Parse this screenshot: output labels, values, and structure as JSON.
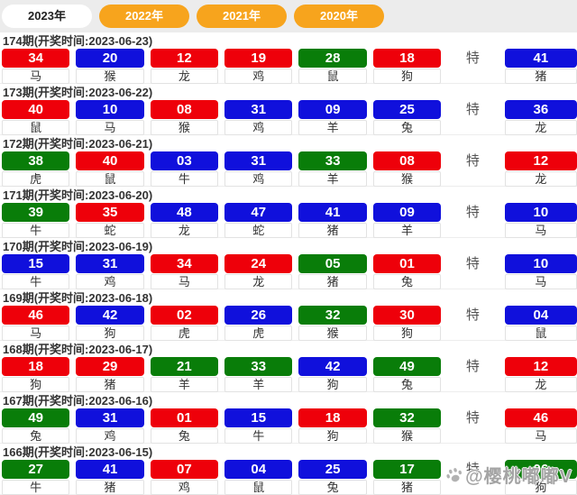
{
  "tabs": [
    {
      "label": "2023年",
      "active": true
    },
    {
      "label": "2022年",
      "active": false
    },
    {
      "label": "2021年",
      "active": false
    },
    {
      "label": "2020年",
      "active": false
    }
  ],
  "special_label": "特",
  "colors": {
    "red": "#ee000a",
    "blue": "#1010dc",
    "green": "#097d09",
    "tab_orange": "#f7a41d",
    "tab_active_bg": "#ffffff"
  },
  "watermark": {
    "icon": "paw-icon",
    "text": "@樱桃嘟嘟V"
  },
  "rows": [
    {
      "period": "174期(开奖时间:2023-06-23)",
      "balls": [
        {
          "num": "34",
          "zodiac": "马",
          "color": "red"
        },
        {
          "num": "20",
          "zodiac": "猴",
          "color": "blue"
        },
        {
          "num": "12",
          "zodiac": "龙",
          "color": "red"
        },
        {
          "num": "19",
          "zodiac": "鸡",
          "color": "red"
        },
        {
          "num": "28",
          "zodiac": "鼠",
          "color": "green"
        },
        {
          "num": "18",
          "zodiac": "狗",
          "color": "red"
        }
      ],
      "special": {
        "num": "41",
        "zodiac": "猪",
        "color": "blue"
      }
    },
    {
      "period": "173期(开奖时间:2023-06-22)",
      "balls": [
        {
          "num": "40",
          "zodiac": "鼠",
          "color": "red"
        },
        {
          "num": "10",
          "zodiac": "马",
          "color": "blue"
        },
        {
          "num": "08",
          "zodiac": "猴",
          "color": "red"
        },
        {
          "num": "31",
          "zodiac": "鸡",
          "color": "blue"
        },
        {
          "num": "09",
          "zodiac": "羊",
          "color": "blue"
        },
        {
          "num": "25",
          "zodiac": "兔",
          "color": "blue"
        }
      ],
      "special": {
        "num": "36",
        "zodiac": "龙",
        "color": "blue"
      }
    },
    {
      "period": "172期(开奖时间:2023-06-21)",
      "balls": [
        {
          "num": "38",
          "zodiac": "虎",
          "color": "green"
        },
        {
          "num": "40",
          "zodiac": "鼠",
          "color": "red"
        },
        {
          "num": "03",
          "zodiac": "牛",
          "color": "blue"
        },
        {
          "num": "31",
          "zodiac": "鸡",
          "color": "blue"
        },
        {
          "num": "33",
          "zodiac": "羊",
          "color": "green"
        },
        {
          "num": "08",
          "zodiac": "猴",
          "color": "red"
        }
      ],
      "special": {
        "num": "12",
        "zodiac": "龙",
        "color": "red"
      }
    },
    {
      "period": "171期(开奖时间:2023-06-20)",
      "balls": [
        {
          "num": "39",
          "zodiac": "牛",
          "color": "green"
        },
        {
          "num": "35",
          "zodiac": "蛇",
          "color": "red"
        },
        {
          "num": "48",
          "zodiac": "龙",
          "color": "blue"
        },
        {
          "num": "47",
          "zodiac": "蛇",
          "color": "blue"
        },
        {
          "num": "41",
          "zodiac": "猪",
          "color": "blue"
        },
        {
          "num": "09",
          "zodiac": "羊",
          "color": "blue"
        }
      ],
      "special": {
        "num": "10",
        "zodiac": "马",
        "color": "blue"
      }
    },
    {
      "period": "170期(开奖时间:2023-06-19)",
      "balls": [
        {
          "num": "15",
          "zodiac": "牛",
          "color": "blue"
        },
        {
          "num": "31",
          "zodiac": "鸡",
          "color": "blue"
        },
        {
          "num": "34",
          "zodiac": "马",
          "color": "red"
        },
        {
          "num": "24",
          "zodiac": "龙",
          "color": "red"
        },
        {
          "num": "05",
          "zodiac": "猪",
          "color": "green"
        },
        {
          "num": "01",
          "zodiac": "兔",
          "color": "red"
        }
      ],
      "special": {
        "num": "10",
        "zodiac": "马",
        "color": "blue"
      }
    },
    {
      "period": "169期(开奖时间:2023-06-18)",
      "balls": [
        {
          "num": "46",
          "zodiac": "马",
          "color": "red"
        },
        {
          "num": "42",
          "zodiac": "狗",
          "color": "blue"
        },
        {
          "num": "02",
          "zodiac": "虎",
          "color": "red"
        },
        {
          "num": "26",
          "zodiac": "虎",
          "color": "blue"
        },
        {
          "num": "32",
          "zodiac": "猴",
          "color": "green"
        },
        {
          "num": "30",
          "zodiac": "狗",
          "color": "red"
        }
      ],
      "special": {
        "num": "04",
        "zodiac": "鼠",
        "color": "blue"
      }
    },
    {
      "period": "168期(开奖时间:2023-06-17)",
      "balls": [
        {
          "num": "18",
          "zodiac": "狗",
          "color": "red"
        },
        {
          "num": "29",
          "zodiac": "猪",
          "color": "red"
        },
        {
          "num": "21",
          "zodiac": "羊",
          "color": "green"
        },
        {
          "num": "33",
          "zodiac": "羊",
          "color": "green"
        },
        {
          "num": "42",
          "zodiac": "狗",
          "color": "blue"
        },
        {
          "num": "49",
          "zodiac": "兔",
          "color": "green"
        }
      ],
      "special": {
        "num": "12",
        "zodiac": "龙",
        "color": "red"
      }
    },
    {
      "period": "167期(开奖时间:2023-06-16)",
      "balls": [
        {
          "num": "49",
          "zodiac": "兔",
          "color": "green"
        },
        {
          "num": "31",
          "zodiac": "鸡",
          "color": "blue"
        },
        {
          "num": "01",
          "zodiac": "兔",
          "color": "red"
        },
        {
          "num": "15",
          "zodiac": "牛",
          "color": "blue"
        },
        {
          "num": "18",
          "zodiac": "狗",
          "color": "red"
        },
        {
          "num": "32",
          "zodiac": "猴",
          "color": "green"
        }
      ],
      "special": {
        "num": "46",
        "zodiac": "马",
        "color": "red"
      }
    },
    {
      "period": "166期(开奖时间:2023-06-15)",
      "balls": [
        {
          "num": "27",
          "zodiac": "牛",
          "color": "green"
        },
        {
          "num": "41",
          "zodiac": "猪",
          "color": "blue"
        },
        {
          "num": "07",
          "zodiac": "鸡",
          "color": "red"
        },
        {
          "num": "04",
          "zodiac": "鼠",
          "color": "blue"
        },
        {
          "num": "25",
          "zodiac": "兔",
          "color": "blue"
        },
        {
          "num": "17",
          "zodiac": "猪",
          "color": "green"
        }
      ],
      "special": {
        "num": "06",
        "zodiac": "狗",
        "color": "green"
      }
    }
  ]
}
